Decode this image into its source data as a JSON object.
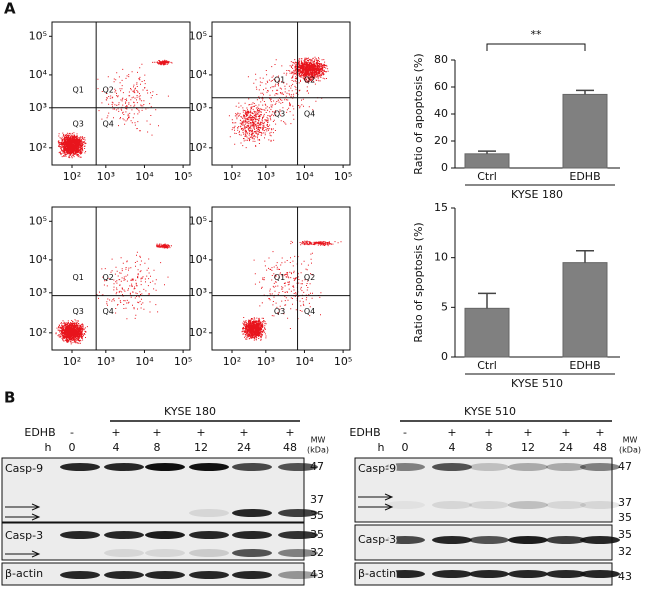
{
  "panel_labels": [
    "A",
    "B"
  ],
  "flow_cytometry": {
    "axis_ticks": [
      "10²",
      "10³",
      "10⁴",
      "10⁵"
    ],
    "quadrants": [
      "Q1",
      "Q2",
      "Q3",
      "Q4"
    ]
  },
  "chart_data": [
    {
      "type": "bar",
      "y_label": "Ratio of apoptosis (%)",
      "categories": [
        "Ctrl",
        "EDHB"
      ],
      "values": [
        10.5,
        54.5
      ],
      "errors": [
        2,
        3
      ],
      "color": "#808080",
      "ylim": [
        0,
        80
      ],
      "yticks": [
        0,
        20,
        40,
        60,
        80
      ],
      "annotation": "**",
      "group_label": "KYSE 180"
    },
    {
      "type": "bar",
      "y_label": "Ratio of spoptosis (%)",
      "categories": [
        "Ctrl",
        "EDHB"
      ],
      "values": [
        4.9,
        9.5
      ],
      "errors": [
        1.5,
        1.2
      ],
      "color": "#808080",
      "ylim": [
        0,
        15
      ],
      "yticks": [
        0,
        5,
        10,
        15
      ],
      "group_label": "KYSE 510"
    }
  ],
  "western_blot": [
    {
      "cell_line": "KYSE 180",
      "treatment_label": "EDHB",
      "treatment": [
        "-",
        "+",
        "+",
        "+",
        "+",
        "+"
      ],
      "time_label": "h",
      "times": [
        "0",
        "4",
        "8",
        "12",
        "24",
        "48"
      ],
      "mw_label": "MW",
      "mw_unit": "(kDa)",
      "proteins": [
        "Casp-9",
        "Casp-3",
        "β-actin"
      ],
      "mw_markers": [
        47,
        37,
        35,
        35,
        32,
        43
      ]
    },
    {
      "cell_line": "KYSE 510",
      "treatment_label": "EDHB",
      "treatment": [
        "-",
        "+",
        "+",
        "+",
        "+",
        "+"
      ],
      "time_label": "h",
      "times": [
        "0",
        "4",
        "8",
        "12",
        "24",
        "48"
      ],
      "mw_label": "MW",
      "mw_unit": "(kDa)",
      "proteins": [
        "Casp-9",
        "Casp-3",
        "β-actin"
      ],
      "mw_markers": [
        47,
        37,
        35,
        35,
        32,
        43
      ]
    }
  ]
}
